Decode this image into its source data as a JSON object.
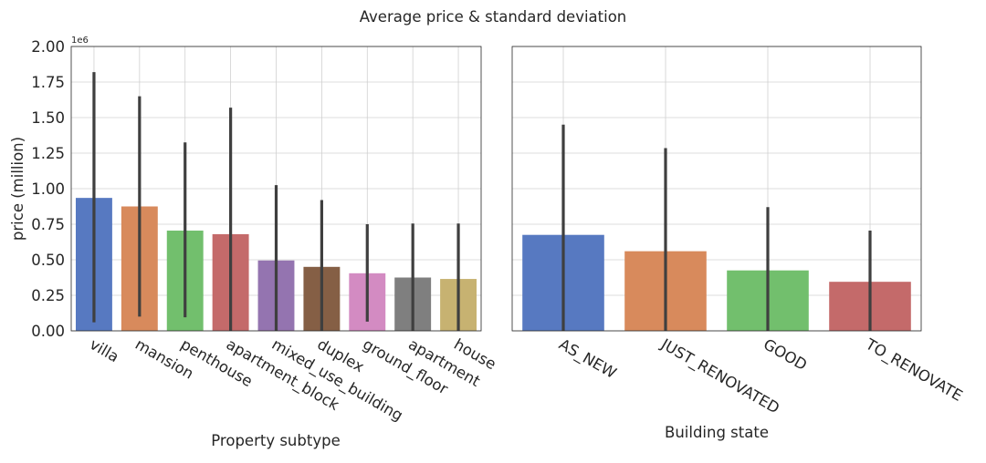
{
  "figure": {
    "suptitle": "Average price & standard deviation",
    "ylabel": "price (million)",
    "offset_label": "1e6"
  },
  "chart_data": [
    {
      "type": "bar",
      "xlabel": "Property subtype",
      "ylabel": "price (million)",
      "ylim": [
        0,
        2000000
      ],
      "yticks": [
        0,
        250000,
        500000,
        750000,
        1000000,
        1250000,
        1500000,
        1750000,
        2000000
      ],
      "ytick_labels": [
        "0.00",
        "0.25",
        "0.50",
        "0.75",
        "1.00",
        "1.25",
        "1.50",
        "1.75",
        "2.00"
      ],
      "grid": true,
      "categories": [
        "villa",
        "mansion",
        "penthouse",
        "apartment_block",
        "mixed_use_building",
        "duplex",
        "ground_floor",
        "apartment",
        "house"
      ],
      "values": [
        935000,
        875000,
        705000,
        680000,
        495000,
        450000,
        405000,
        375000,
        365000
      ],
      "error_low": [
        60000,
        100000,
        95000,
        0,
        0,
        0,
        65000,
        0,
        0
      ],
      "error_high": [
        1820000,
        1650000,
        1325000,
        1570000,
        1025000,
        920000,
        750000,
        755000,
        755000
      ],
      "colors": [
        "#5779c1",
        "#d88a5c",
        "#72bf6d",
        "#c46a6a",
        "#9474b0",
        "#855f45",
        "#d38bc2",
        "#7f7f7f",
        "#c7b271"
      ]
    },
    {
      "type": "bar",
      "xlabel": "Building state",
      "ylabel": "",
      "ylim": [
        0,
        2000000
      ],
      "grid": true,
      "categories": [
        "AS_NEW",
        "JUST_RENOVATED",
        "GOOD",
        "TO_RENOVATE"
      ],
      "values": [
        675000,
        560000,
        425000,
        345000
      ],
      "error_low": [
        0,
        0,
        0,
        0
      ],
      "error_high": [
        1450000,
        1285000,
        870000,
        705000
      ],
      "colors": [
        "#5779c1",
        "#d88a5c",
        "#72bf6d",
        "#c46a6a"
      ]
    }
  ]
}
